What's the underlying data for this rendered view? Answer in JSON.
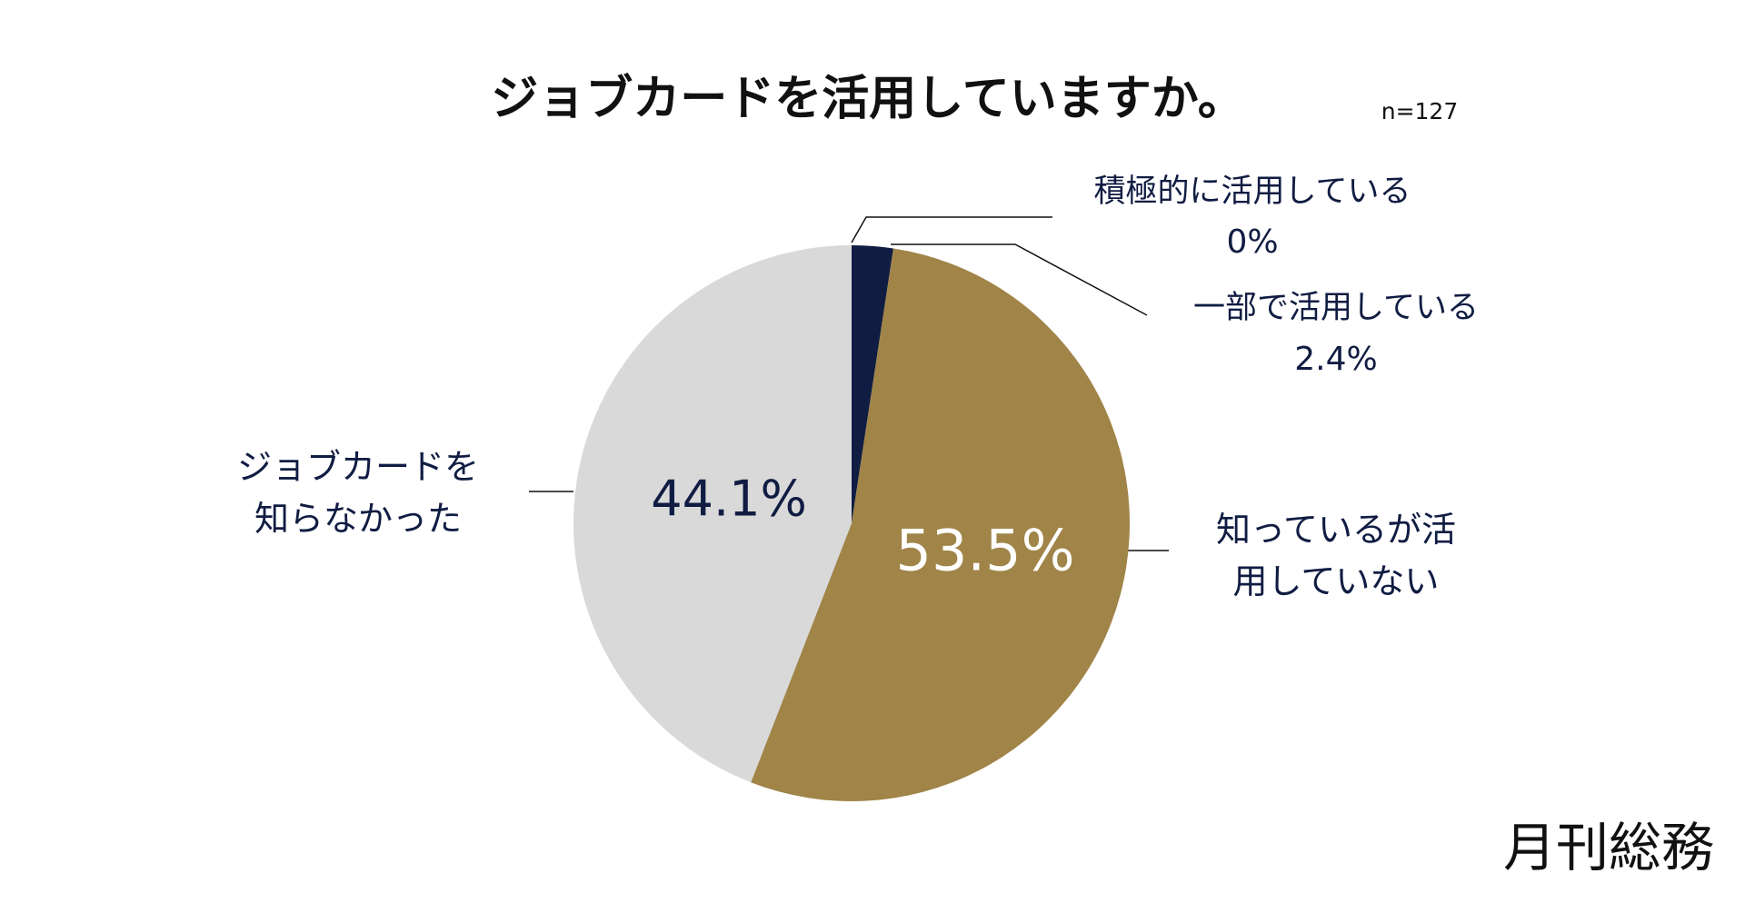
{
  "chart_data": {
    "type": "pie",
    "title": "ジョブカードを活用していますか。",
    "subtitle": "n=127",
    "categories": [
      "積極的に活用している",
      "一部で活用している",
      "知っているが活用していない",
      "ジョブカードを知らなかった"
    ],
    "values": [
      0,
      2.4,
      53.5,
      44.1
    ],
    "value_labels": [
      "0%",
      "2.4%",
      "53.5%",
      "44.1%"
    ],
    "colors": [
      "#101c42",
      "#101c42",
      "#a08448",
      "#d9d9d9"
    ],
    "source": "月刊総務"
  }
}
